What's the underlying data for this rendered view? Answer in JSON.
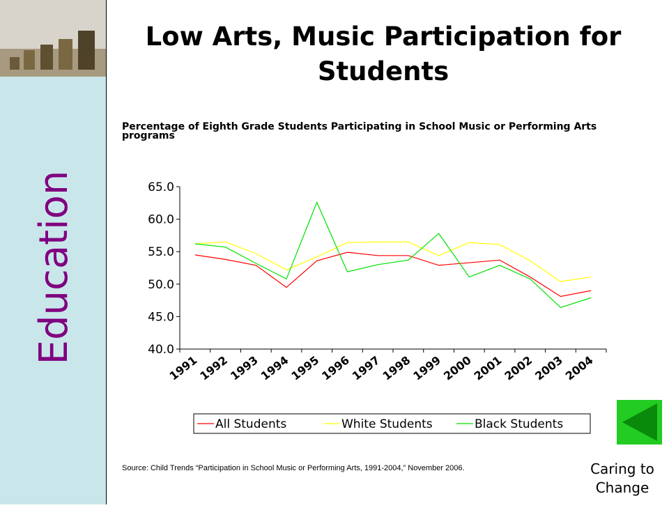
{
  "slide": {
    "title": "Low Arts, Music Participation for Students",
    "sidebar_label": "Education",
    "source": "Source: Child Trends “Participation in School Music or Performing Arts, 1991-2004,” November 2006.",
    "footer": "Caring to Change"
  },
  "chart_data": {
    "type": "line",
    "title": "Percentage of Eighth Grade Students Participating in School Music or Performing Arts programs",
    "categories": [
      "1991",
      "1992",
      "1993",
      "1994",
      "1995",
      "1996",
      "1997",
      "1998",
      "1999",
      "2000",
      "2001",
      "2002",
      "2003",
      "2004"
    ],
    "series": [
      {
        "name": "All Students",
        "color": "#ff0000",
        "values": [
          54.5,
          53.8,
          52.9,
          49.5,
          53.6,
          54.9,
          54.4,
          54.4,
          52.9,
          53.3,
          53.7,
          51.1,
          48.1,
          49.0
        ]
      },
      {
        "name": "White Students",
        "color": "#ffff00",
        "values": [
          56.2,
          56.5,
          54.7,
          52.2,
          54.2,
          56.4,
          56.5,
          56.5,
          54.4,
          56.4,
          56.1,
          53.6,
          50.4,
          51.1
        ]
      },
      {
        "name": "Black Students",
        "color": "#00e000",
        "values": [
          56.2,
          55.7,
          53.2,
          50.8,
          62.6,
          51.9,
          53.0,
          53.7,
          57.8,
          51.1,
          52.9,
          50.8,
          46.4,
          47.9
        ]
      }
    ],
    "ylim": [
      40,
      65
    ],
    "yticks": [
      {
        "value": 40,
        "label": "40.0"
      },
      {
        "value": 45,
        "label": "45.0"
      },
      {
        "value": 50,
        "label": "50.0"
      },
      {
        "value": 55,
        "label": "55.0"
      },
      {
        "value": 60,
        "label": "60.0"
      },
      {
        "value": 65,
        "label": "65.0"
      }
    ],
    "legend": "bottom"
  }
}
